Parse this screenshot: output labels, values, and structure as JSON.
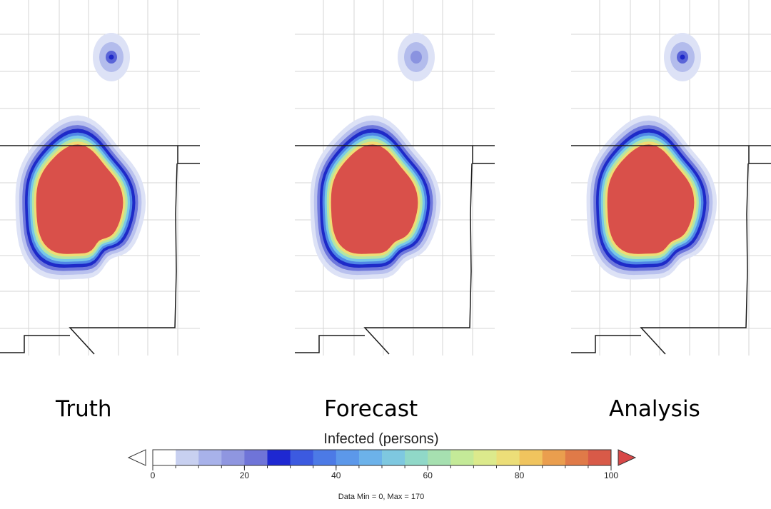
{
  "chart_data": {
    "type": "heatmap",
    "panels": [
      {
        "label": "Truth"
      },
      {
        "label": "Forecast"
      },
      {
        "label": "Analysis"
      }
    ],
    "colorbar": {
      "title": "Infected (persons)",
      "min": 0,
      "max": 100,
      "step": 5,
      "tick_labels": [
        "0",
        "20",
        "40",
        "60",
        "80",
        "100"
      ],
      "extend": "both",
      "colors": [
        "#ffffff",
        "#c8d0f0",
        "#a8b2ea",
        "#8f96e0",
        "#6f74d8",
        "#1e28d2",
        "#3c5ae0",
        "#4c7ae6",
        "#5c98ea",
        "#6cb2ea",
        "#7ec8e0",
        "#90d8c8",
        "#a6e0b0",
        "#c4ea98",
        "#dcea8c",
        "#ecde78",
        "#f0c45e",
        "#ea9e4e",
        "#e07a48",
        "#d85a48"
      ],
      "under_color": "#ffffff",
      "over_color": "#d84848"
    },
    "data_range_text": "Data Min = 0, Max = 170"
  }
}
